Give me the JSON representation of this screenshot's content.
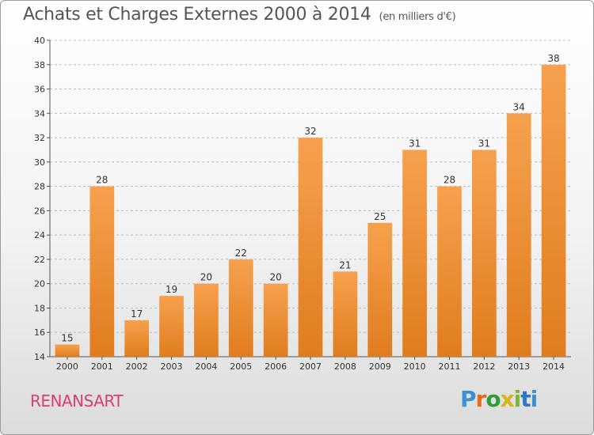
{
  "title": "Achats et Charges Externes 2000 à 2014",
  "unit": "(en milliers d'€)",
  "commune": "RENANSART",
  "brand": "Proxiti",
  "colors": {
    "bar_light": "#f6a14e",
    "bar_dark": "#e07c1e",
    "commune_text": "#d8406e"
  },
  "chart_data": {
    "type": "bar",
    "title": "Achats et Charges Externes 2000 à 2014",
    "subtitle": "(en milliers d'€)",
    "xlabel": "",
    "ylabel": "",
    "categories": [
      "2000",
      "2001",
      "2002",
      "2003",
      "2004",
      "2005",
      "2006",
      "2007",
      "2008",
      "2009",
      "2010",
      "2011",
      "2012",
      "2013",
      "2014"
    ],
    "values": [
      15,
      28,
      17,
      19,
      20,
      22,
      20,
      32,
      21,
      25,
      31,
      28,
      31,
      34,
      38
    ],
    "ylim": [
      14,
      40
    ],
    "yticks": [
      14,
      16,
      18,
      20,
      22,
      24,
      26,
      28,
      30,
      32,
      34,
      36,
      38,
      40
    ],
    "grid": true,
    "legend": "none"
  }
}
